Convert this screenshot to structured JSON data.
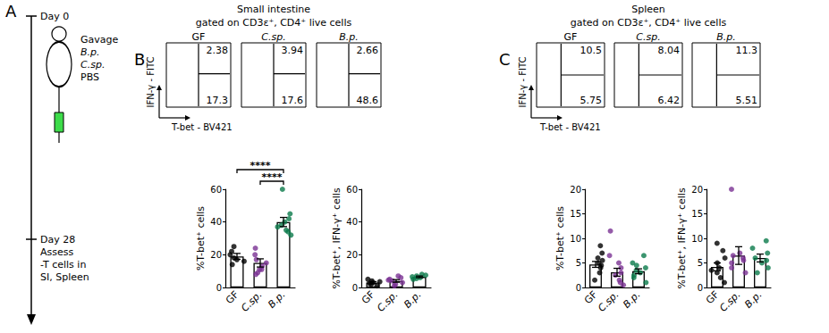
{
  "panel_a": {
    "label": "A",
    "events": [
      {
        "day": "Day 0",
        "lines": [
          "Gavage",
          "B.p.",
          "C.sp.",
          "PBS"
        ]
      },
      {
        "day": "Day 28",
        "lines": [
          "Assess",
          "-T cells in",
          "SI, Spleen"
        ]
      }
    ]
  },
  "flow_panels": [
    {
      "label": "B",
      "title": "Small intestine",
      "subtitle": "gated on CD3ε⁺, CD4⁺ live cells",
      "x_label": "T-bet - BV421",
      "y_label": "IFN-γ - FITC",
      "plots": [
        {
          "name": "GF",
          "upper_right": 2.38,
          "lower_right": 17.3
        },
        {
          "name": "C.sp.",
          "upper_right": 3.94,
          "lower_right": 17.6
        },
        {
          "name": "B.p.",
          "upper_right": 2.66,
          "lower_right": 48.6
        }
      ]
    },
    {
      "label": "C",
      "title": "Spleen",
      "subtitle": "gated on CD3ε⁺, CD4⁺ live cells",
      "x_label": "T-bet - BV421",
      "y_label": "IFN-γ - FITC",
      "plots": [
        {
          "name": "GF",
          "upper_right": 10.5,
          "lower_right": 5.75
        },
        {
          "name": "C.sp.",
          "upper_right": 8.04,
          "lower_right": 6.42
        },
        {
          "name": "B.p.",
          "upper_right": 11.3,
          "lower_right": 5.51
        }
      ]
    }
  ],
  "chart_data": [
    {
      "type": "bar",
      "ylabel": "%T-bet⁺ cells",
      "categories": [
        "GF",
        "C.sp.",
        "B.p."
      ],
      "values": [
        19,
        15,
        40
      ],
      "errors": [
        1.8,
        2.5,
        2.8
      ],
      "points": [
        [
          14,
          16,
          17,
          18,
          20,
          22,
          25
        ],
        [
          8,
          9,
          11,
          11,
          13,
          15,
          17,
          20,
          24
        ],
        [
          32,
          34,
          35,
          37,
          38,
          40,
          42,
          45,
          60
        ]
      ],
      "color": "#ffffff",
      "colors": [
        "#000000",
        "#7b3294",
        "#0b7a4b"
      ],
      "ylim": [
        0,
        60
      ],
      "yticks": [
        0,
        20,
        40,
        60
      ],
      "significance": [
        {
          "from": "GF",
          "to": "B.p.",
          "label": "****"
        },
        {
          "from": "C.sp.",
          "to": "B.p.",
          "label": "****"
        }
      ]
    },
    {
      "type": "bar",
      "ylabel": "%T-bet⁺, IFN-γ⁺ cells",
      "categories": [
        "GF",
        "C.sp.",
        "B.p."
      ],
      "values": [
        3,
        4,
        6.5
      ],
      "errors": [
        0.6,
        0.8,
        0.5
      ],
      "points": [
        [
          1,
          2,
          2.5,
          3,
          3.5,
          4,
          5
        ],
        [
          1,
          2,
          3,
          4,
          4.5,
          5,
          6,
          7
        ],
        [
          5,
          5.5,
          6,
          6.5,
          7,
          7.5,
          8
        ]
      ],
      "color": "#ffffff",
      "colors": [
        "#000000",
        "#7b3294",
        "#0b7a4b"
      ],
      "ylim": [
        0,
        60
      ],
      "yticks": [
        0,
        20,
        40,
        60
      ]
    },
    {
      "type": "bar",
      "ylabel": "%T-bet⁺ cells",
      "categories": [
        "GF",
        "C.sp.",
        "B.p."
      ],
      "values": [
        4.7,
        3.1,
        3.3
      ],
      "errors": [
        0.6,
        0.8,
        0.5
      ],
      "points": [
        [
          1.5,
          3,
          4,
          4.5,
          5,
          5.5,
          6,
          7,
          8.5
        ],
        [
          0.5,
          1,
          1.5,
          2.5,
          3,
          4,
          5,
          6.5,
          11.5
        ],
        [
          1,
          2,
          2.5,
          3,
          3.5,
          4,
          4.5,
          5,
          6.5
        ]
      ],
      "color": "#ffffff",
      "colors": [
        "#000000",
        "#7b3294",
        "#0b7a4b"
      ],
      "ylim": [
        0,
        20
      ],
      "yticks": [
        0,
        5,
        10,
        15,
        20
      ]
    },
    {
      "type": "bar",
      "ylabel": "%T-bet⁺, IFN-γ⁺ cells",
      "categories": [
        "GF",
        "C.sp.",
        "B.p."
      ],
      "values": [
        4.2,
        6.5,
        6
      ],
      "errors": [
        0.8,
        1.8,
        0.8
      ],
      "points": [
        [
          1,
          2,
          3,
          3.5,
          4,
          5,
          6,
          7.5,
          9
        ],
        [
          3,
          4,
          5,
          5.5,
          6,
          6.5,
          7,
          20
        ],
        [
          3,
          4,
          5,
          5.5,
          6,
          7,
          8,
          9.5
        ]
      ],
      "color": "#ffffff",
      "colors": [
        "#000000",
        "#7b3294",
        "#0b7a4b"
      ],
      "ylim": [
        0,
        20
      ],
      "yticks": [
        0,
        5,
        10,
        15,
        20
      ]
    }
  ]
}
